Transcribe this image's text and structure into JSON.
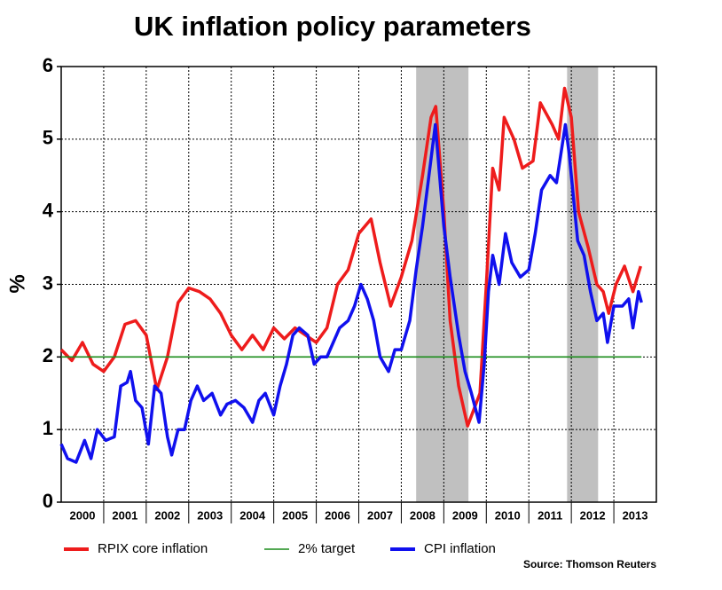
{
  "chart_data": {
    "type": "line",
    "title": "UK inflation policy parameters",
    "y_label": "%",
    "source": "Source: Thomson Reuters",
    "xlim": [
      2000,
      2014
    ],
    "xticks": [
      {
        "value": 2000.5,
        "label": "2000"
      },
      {
        "value": 2001.5,
        "label": "2001"
      },
      {
        "value": 2002.5,
        "label": "2002"
      },
      {
        "value": 2003.5,
        "label": "2003"
      },
      {
        "value": 2004.5,
        "label": "2004"
      },
      {
        "value": 2005.5,
        "label": "2005"
      },
      {
        "value": 2006.5,
        "label": "2006"
      },
      {
        "value": 2007.5,
        "label": "2007"
      },
      {
        "value": 2008.5,
        "label": "2008"
      },
      {
        "value": 2009.5,
        "label": "2009"
      },
      {
        "value": 2010.5,
        "label": "2010"
      },
      {
        "value": 2011.5,
        "label": "2011"
      },
      {
        "value": 2012.5,
        "label": "2012"
      },
      {
        "value": 2013.5,
        "label": "2013"
      }
    ],
    "xgrid": [
      2001,
      2002,
      2003,
      2004,
      2005,
      2006,
      2007,
      2008,
      2009,
      2010,
      2011,
      2012,
      2013
    ],
    "ylim": [
      0,
      6
    ],
    "yticks": [
      0,
      1,
      2,
      3,
      4,
      5,
      6
    ],
    "grid": true,
    "shaded_periods": [
      [
        2008.35,
        2009.58
      ],
      [
        2011.9,
        2012.63
      ]
    ],
    "shade_color": "#c0c0c0",
    "legend": "bottom",
    "series": [
      {
        "name": "RPIX core inflation",
        "color": "#ee1c1c",
        "x": [
          2000.0,
          2000.25,
          2000.5,
          2000.75,
          2001.0,
          2001.25,
          2001.5,
          2001.75,
          2002.0,
          2002.25,
          2002.5,
          2002.75,
          2003.0,
          2003.25,
          2003.5,
          2003.75,
          2004.0,
          2004.25,
          2004.5,
          2004.75,
          2005.0,
          2005.25,
          2005.5,
          2005.75,
          2006.0,
          2006.25,
          2006.5,
          2006.75,
          2007.0,
          2007.29,
          2007.5,
          2007.75,
          2008.0,
          2008.25,
          2008.5,
          2008.7,
          2008.81,
          2009.0,
          2009.15,
          2009.35,
          2009.56,
          2009.85,
          2010.0,
          2010.15,
          2010.3,
          2010.42,
          2010.65,
          2010.85,
          2011.1,
          2011.27,
          2011.55,
          2011.7,
          2011.84,
          2012.0,
          2012.17,
          2012.4,
          2012.6,
          2012.75,
          2012.88,
          2013.05,
          2013.25,
          2013.45,
          2013.63
        ],
        "values": [
          2.1,
          1.95,
          2.2,
          1.9,
          1.8,
          2.0,
          2.45,
          2.5,
          2.3,
          1.55,
          2.0,
          2.75,
          2.95,
          2.9,
          2.8,
          2.6,
          2.3,
          2.1,
          2.3,
          2.1,
          2.4,
          2.25,
          2.4,
          2.3,
          2.2,
          2.4,
          3.0,
          3.2,
          3.7,
          3.9,
          3.3,
          2.7,
          3.1,
          3.6,
          4.5,
          5.3,
          5.45,
          4.0,
          2.5,
          1.6,
          1.05,
          1.5,
          3.0,
          4.6,
          4.3,
          5.3,
          5.0,
          4.6,
          4.7,
          5.5,
          5.2,
          5.0,
          5.7,
          5.3,
          4.0,
          3.5,
          3.0,
          2.9,
          2.6,
          3.0,
          3.25,
          2.9,
          3.25
        ]
      },
      {
        "name": "2% target",
        "color": "#1a8c1a",
        "x": [
          2000.0,
          2013.65
        ],
        "values": [
          2,
          2
        ]
      },
      {
        "name": "CPI inflation",
        "color": "#1010ee",
        "x": [
          2000.0,
          2000.15,
          2000.35,
          2000.55,
          2000.7,
          2000.85,
          2001.05,
          2001.25,
          2001.4,
          2001.55,
          2001.63,
          2001.75,
          2001.9,
          2002.05,
          2002.2,
          2002.35,
          2002.5,
          2002.6,
          2002.75,
          2002.9,
          2003.05,
          2003.2,
          2003.35,
          2003.55,
          2003.75,
          2003.9,
          2004.1,
          2004.3,
          2004.5,
          2004.65,
          2004.8,
          2005.0,
          2005.15,
          2005.3,
          2005.45,
          2005.6,
          2005.8,
          2005.95,
          2006.1,
          2006.25,
          2006.4,
          2006.55,
          2006.75,
          2006.9,
          2007.05,
          2007.2,
          2007.35,
          2007.5,
          2007.7,
          2007.85,
          2008.0,
          2008.2,
          2008.35,
          2008.5,
          2008.65,
          2008.8,
          2009.0,
          2009.15,
          2009.35,
          2009.5,
          2009.65,
          2009.83,
          2009.95,
          2010.05,
          2010.15,
          2010.3,
          2010.45,
          2010.6,
          2010.8,
          2011.0,
          2011.15,
          2011.3,
          2011.5,
          2011.65,
          2011.86,
          2011.95,
          2012.05,
          2012.15,
          2012.3,
          2012.45,
          2012.6,
          2012.75,
          2012.85,
          2013.0,
          2013.2,
          2013.35,
          2013.45,
          2013.58,
          2013.65
        ],
        "values": [
          0.8,
          0.6,
          0.55,
          0.85,
          0.6,
          1.0,
          0.85,
          0.9,
          1.6,
          1.65,
          1.8,
          1.4,
          1.3,
          0.8,
          1.6,
          1.5,
          0.9,
          0.65,
          1.0,
          1.0,
          1.4,
          1.6,
          1.4,
          1.5,
          1.2,
          1.35,
          1.4,
          1.3,
          1.1,
          1.4,
          1.5,
          1.2,
          1.6,
          1.9,
          2.3,
          2.4,
          2.3,
          1.9,
          2.0,
          2.0,
          2.2,
          2.4,
          2.5,
          2.7,
          3.0,
          2.8,
          2.5,
          2.0,
          1.8,
          2.1,
          2.1,
          2.5,
          3.2,
          3.8,
          4.5,
          5.2,
          3.8,
          3.1,
          2.3,
          1.8,
          1.5,
          1.1,
          1.9,
          2.9,
          3.4,
          3.0,
          3.7,
          3.3,
          3.1,
          3.2,
          3.7,
          4.3,
          4.5,
          4.4,
          5.2,
          4.8,
          4.2,
          3.6,
          3.4,
          2.9,
          2.5,
          2.6,
          2.2,
          2.7,
          2.7,
          2.8,
          2.4,
          2.9,
          2.75
        ]
      }
    ]
  }
}
